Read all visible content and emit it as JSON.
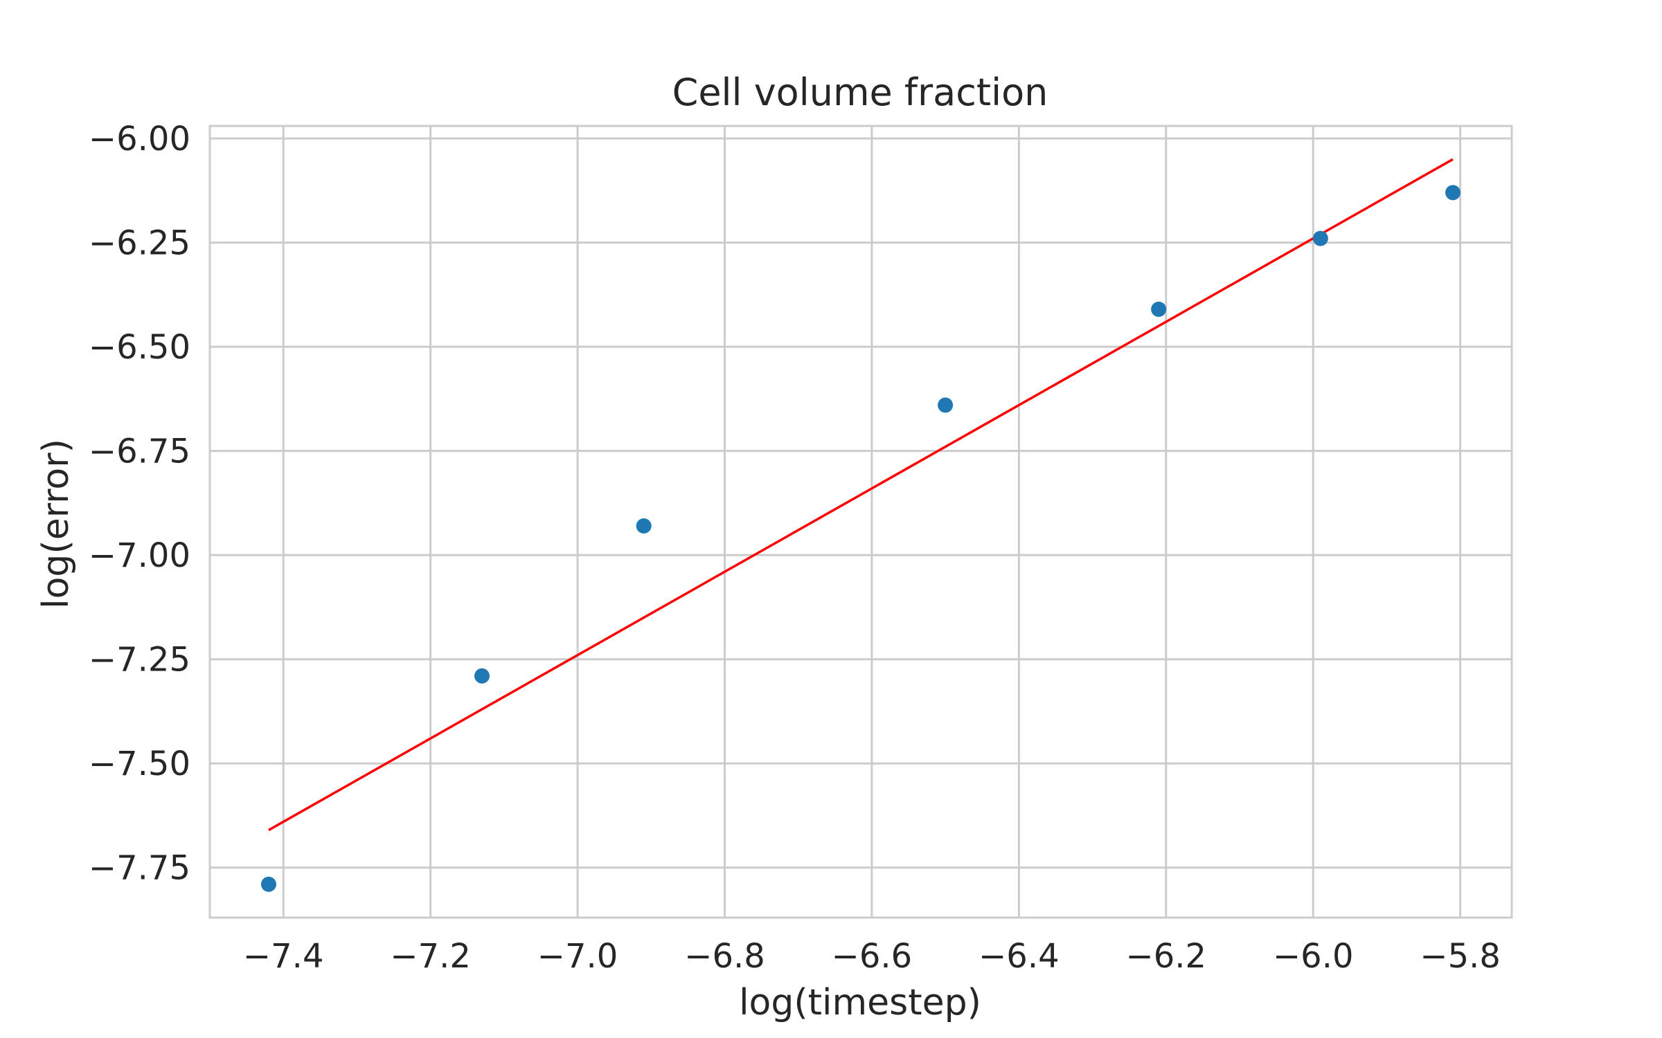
{
  "chart_data": {
    "type": "scatter",
    "title": "Cell volume fraction",
    "xlabel": "log(timestep)",
    "ylabel": "log(error)",
    "xlim": [
      -7.5,
      -5.73
    ],
    "ylim": [
      -7.87,
      -5.97
    ],
    "xticks": [
      -7.4,
      -7.2,
      -7.0,
      -6.8,
      -6.6,
      -6.4,
      -6.2,
      -6.0,
      -5.8
    ],
    "xtick_labels": [
      "−7.4",
      "−7.2",
      "−7.0",
      "−6.8",
      "−6.6",
      "−6.4",
      "−6.2",
      "−6.0",
      "−5.8"
    ],
    "yticks": [
      -6.0,
      -6.25,
      -6.5,
      -6.75,
      -7.0,
      -7.25,
      -7.5,
      -7.75
    ],
    "ytick_labels": [
      "−6.00",
      "−6.25",
      "−6.50",
      "−6.75",
      "−7.00",
      "−7.25",
      "−7.50",
      "−7.75"
    ],
    "grid": true,
    "series": [
      {
        "type": "scatter",
        "color": "#1f77b4",
        "x": [
          -7.42,
          -7.13,
          -6.91,
          -6.5,
          -6.21,
          -5.99,
          -5.81
        ],
        "y": [
          -7.79,
          -7.29,
          -6.93,
          -6.64,
          -6.41,
          -6.24,
          -6.13
        ]
      },
      {
        "type": "line",
        "color": "#ff0000",
        "x": [
          -7.42,
          -5.81
        ],
        "y": [
          -7.66,
          -6.05
        ]
      }
    ]
  }
}
